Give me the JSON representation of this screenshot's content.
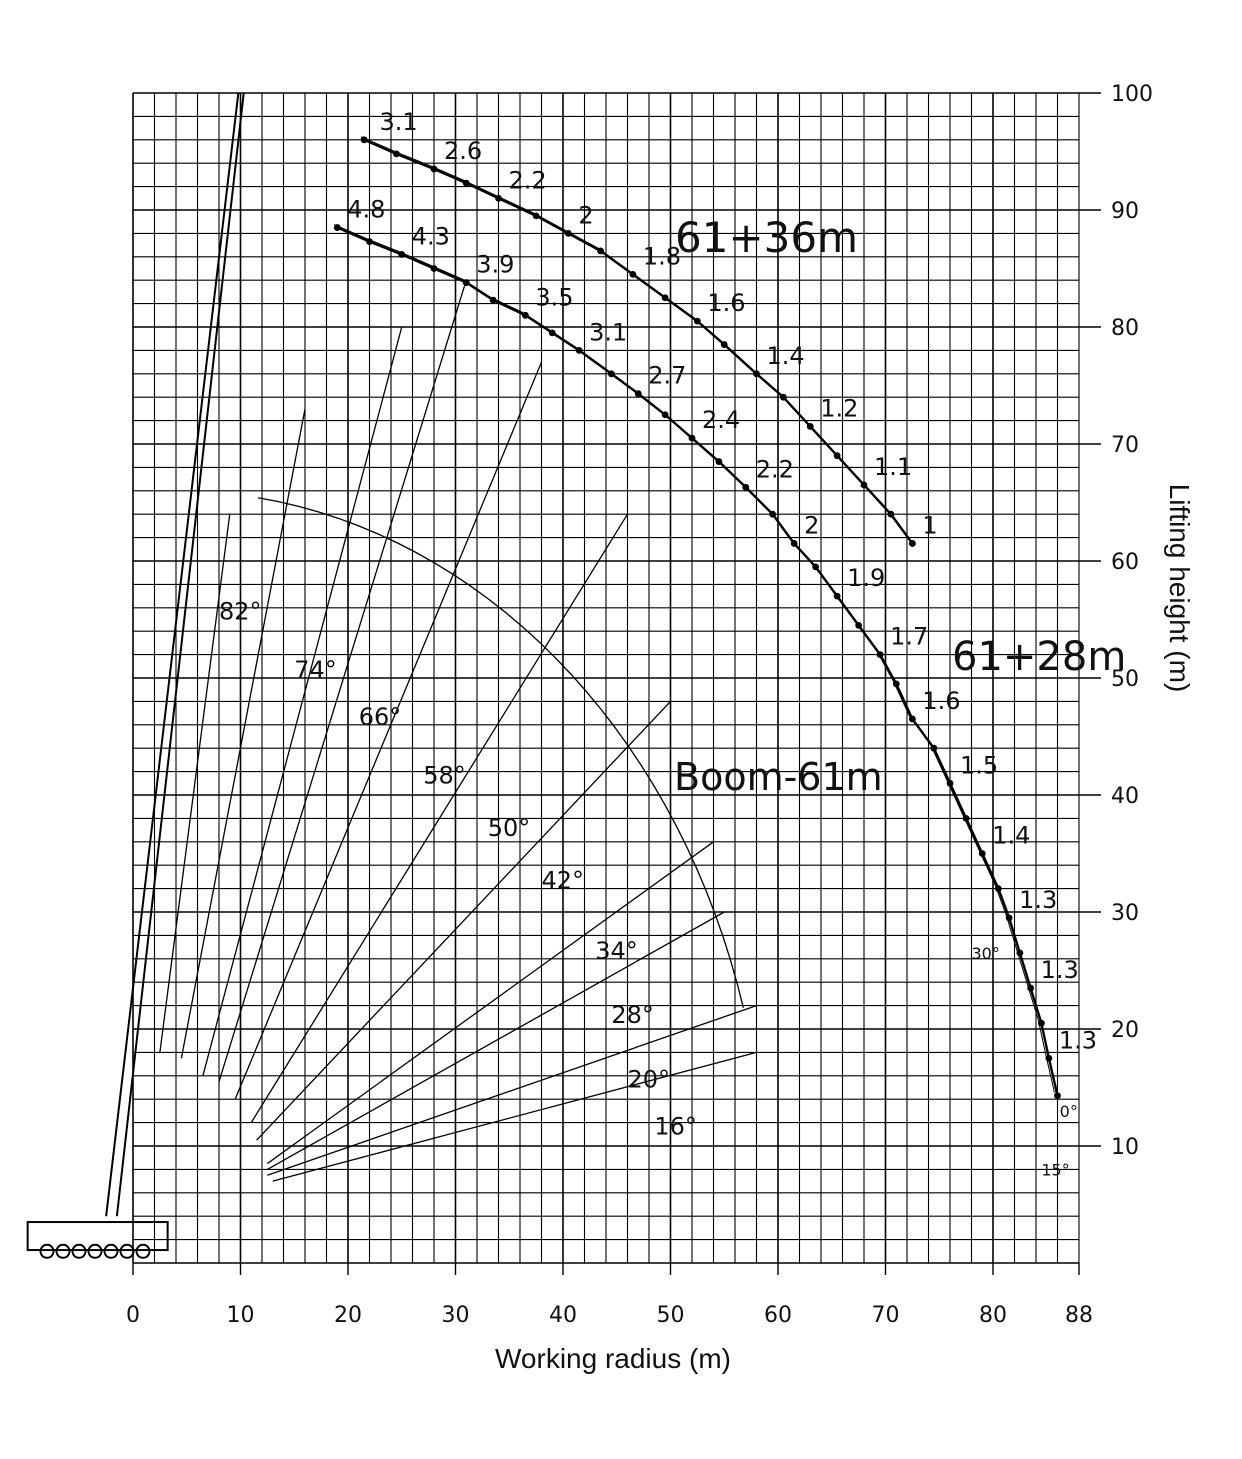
{
  "chart_data": {
    "type": "line",
    "xlabel": "Working radius (m)",
    "ylabel": "Lifting height (m)",
    "xlim": [
      0,
      88
    ],
    "ylim": [
      0,
      100
    ],
    "x_ticks": [
      "0",
      "10",
      "20",
      "30",
      "40",
      "50",
      "60",
      "70",
      "80",
      "88"
    ],
    "y_ticks": [
      "10",
      "20",
      "30",
      "40",
      "50",
      "60",
      "70",
      "80",
      "90",
      "100"
    ],
    "grid": true,
    "series": [
      {
        "name": "61+36m",
        "points": [
          [
            21.5,
            96
          ],
          [
            24.5,
            94.8
          ],
          [
            28,
            93.5
          ],
          [
            31,
            92.3
          ],
          [
            34,
            91
          ],
          [
            37.5,
            89.5
          ],
          [
            40.5,
            88
          ],
          [
            43.5,
            86.5
          ],
          [
            46.5,
            84.5
          ],
          [
            49.5,
            82.5
          ],
          [
            52.5,
            80.5
          ],
          [
            55,
            78.5
          ],
          [
            58,
            76
          ],
          [
            60.5,
            74
          ],
          [
            63,
            71.5
          ],
          [
            65.5,
            69
          ],
          [
            68,
            66.5
          ],
          [
            70.5,
            64
          ],
          [
            72.5,
            61.5
          ]
        ],
        "load_labels": [
          {
            "text": "3.1",
            "x": 22,
            "y": 96
          },
          {
            "text": "2.6",
            "x": 28,
            "y": 93.5
          },
          {
            "text": "2.2",
            "x": 34,
            "y": 91
          },
          {
            "text": "2",
            "x": 40.5,
            "y": 88
          },
          {
            "text": "1.8",
            "x": 46.5,
            "y": 84.5
          },
          {
            "text": "1.6",
            "x": 52.5,
            "y": 80.5
          },
          {
            "text": "1.4",
            "x": 58,
            "y": 76
          },
          {
            "text": "1.2",
            "x": 63,
            "y": 71.5
          },
          {
            "text": "1.1",
            "x": 68,
            "y": 66.5
          },
          {
            "text": "1",
            "x": 72.5,
            "y": 61.5
          }
        ]
      },
      {
        "name": "61+28m",
        "points": [
          [
            19,
            88.5
          ],
          [
            22,
            87.3
          ],
          [
            25,
            86.2
          ],
          [
            28,
            85
          ],
          [
            31,
            83.8
          ],
          [
            33.5,
            82.3
          ],
          [
            36.5,
            81
          ],
          [
            39,
            79.5
          ],
          [
            41.5,
            78
          ],
          [
            44.5,
            76
          ],
          [
            47,
            74.3
          ],
          [
            49.5,
            72.5
          ],
          [
            52,
            70.5
          ],
          [
            54.5,
            68.5
          ],
          [
            57,
            66.3
          ],
          [
            59.5,
            64
          ],
          [
            61.5,
            61.5
          ],
          [
            63.5,
            59.5
          ],
          [
            65.5,
            57
          ],
          [
            67.5,
            54.5
          ],
          [
            69.5,
            52
          ],
          [
            71,
            49.5
          ],
          [
            72.5,
            46.5
          ],
          [
            74.5,
            44
          ],
          [
            76,
            41
          ],
          [
            77.5,
            38
          ],
          [
            79,
            35
          ],
          [
            80.5,
            32
          ],
          [
            81.5,
            29.5
          ],
          [
            82.5,
            26.5
          ],
          [
            83.5,
            23.5
          ],
          [
            84.5,
            20.5
          ],
          [
            85.2,
            17.5
          ],
          [
            86,
            14.3
          ]
        ],
        "load_labels": [
          {
            "text": "4.8",
            "x": 19,
            "y": 88.5
          },
          {
            "text": "4.3",
            "x": 25,
            "y": 86.2
          },
          {
            "text": "3.9",
            "x": 31,
            "y": 83.8
          },
          {
            "text": "3.5",
            "x": 36.5,
            "y": 81
          },
          {
            "text": "3.1",
            "x": 41.5,
            "y": 78
          },
          {
            "text": "2.7",
            "x": 47,
            "y": 74.3
          },
          {
            "text": "2.4",
            "x": 52,
            "y": 70.5
          },
          {
            "text": "2.2",
            "x": 57,
            "y": 66.3
          },
          {
            "text": "2",
            "x": 61.5,
            "y": 61.5
          },
          {
            "text": "1.9",
            "x": 65.5,
            "y": 57
          },
          {
            "text": "1.7",
            "x": 69.5,
            "y": 52
          },
          {
            "text": "1.6",
            "x": 72.5,
            "y": 46.5
          },
          {
            "text": "1.5",
            "x": 76,
            "y": 41
          },
          {
            "text": "1.4",
            "x": 79,
            "y": 35
          },
          {
            "text": "1.3",
            "x": 81.5,
            "y": 29.5
          },
          {
            "text": "1.3",
            "x": 83.5,
            "y": 23.5
          },
          {
            "text": "1.3",
            "x": 85.2,
            "y": 17.5
          }
        ]
      }
    ],
    "boom_label": "Boom-61m",
    "boom_angles": [
      "82°",
      "74°",
      "66°",
      "58°",
      "50°",
      "42°",
      "34°",
      "28°",
      "20°",
      "16°"
    ],
    "jib_offsets": [
      "0°",
      "15°",
      "30°"
    ]
  }
}
